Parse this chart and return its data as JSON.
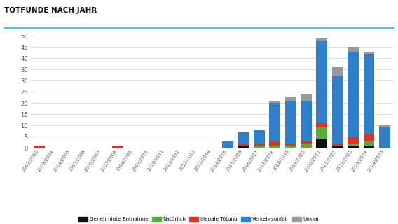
{
  "categories": [
    "2002/2003",
    "2003/2004",
    "2004/2005",
    "2005/2006",
    "2006/2007",
    "2007/2008",
    "2008/2009",
    "2009/2010",
    "2010/2011",
    "2011/2012",
    "2012/2013",
    "2013/2014",
    "2014/2015",
    "2015/2016",
    "2016/2017",
    "2017/2018",
    "2018/2019",
    "2019/2020",
    "2020/2021",
    "2021/2022",
    "2022/2023",
    "2023/2024",
    "2024/2025"
  ],
  "genehmigte_entnahme": [
    0,
    0,
    0,
    0,
    0,
    0,
    0,
    0,
    0,
    0,
    0,
    0,
    0,
    1,
    0,
    0,
    0,
    0,
    4,
    1,
    1,
    1,
    0
  ],
  "natuerlich": [
    0,
    0,
    0,
    0,
    0,
    0,
    0,
    0,
    0,
    0,
    0,
    0,
    0,
    0,
    1,
    1,
    1,
    2,
    5,
    0,
    1,
    2,
    0
  ],
  "illegale_toetung": [
    1,
    0,
    0,
    0,
    0,
    1,
    0,
    0,
    0,
    0,
    0,
    0,
    0,
    1,
    1,
    2,
    1,
    1,
    2,
    1,
    3,
    3,
    0
  ],
  "verkehrsunfall": [
    0,
    0,
    0,
    0,
    0,
    0,
    0,
    0,
    0,
    0,
    0,
    0,
    3,
    5,
    6,
    17,
    19,
    18,
    37,
    30,
    38,
    36,
    9
  ],
  "unklar": [
    0,
    0,
    0,
    0,
    0,
    0,
    0,
    0,
    0,
    0,
    0,
    0,
    0,
    0,
    0,
    1,
    2,
    3,
    1,
    4,
    2,
    1,
    1
  ],
  "colors": {
    "genehmigte_entnahme": "#111111",
    "natuerlich": "#5aaa3c",
    "illegale_toetung": "#e03020",
    "verkehrsunfall": "#2f7ec7",
    "unklar": "#999999"
  },
  "title": "TOTFUNDE NACH JAHR",
  "ylim": [
    0,
    50
  ],
  "yticks": [
    0,
    5,
    10,
    15,
    20,
    25,
    30,
    35,
    40,
    45,
    50
  ],
  "legend_labels": [
    "Genehmigte Entnahme",
    "Natürlich",
    "Illegale Tötung",
    "Verkehrsunfall",
    "Unklar"
  ],
  "bg_color": "#ffffff",
  "grid_color": "#d0d0d0",
  "title_color": "#111111",
  "title_line_color": "#2ab8c8"
}
